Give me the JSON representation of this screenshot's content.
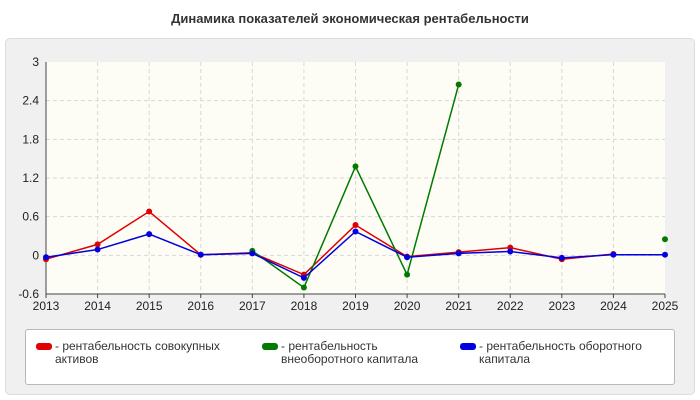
{
  "title": "Динамика показателей экономическая рентабельности",
  "chart_data": {
    "type": "line",
    "title": "Динамика показателей экономическая рентабельности",
    "x": [
      "2013",
      "2014",
      "2015",
      "2016",
      "2017",
      "2018",
      "2019",
      "2020",
      "2021",
      "2022",
      "2023",
      "2024",
      "2025"
    ],
    "ylim": [
      -0.6,
      3
    ],
    "yticks": [
      "-0.6",
      "0",
      "0.6",
      "1.2",
      "1.8",
      "2.4",
      "3"
    ],
    "grid": true,
    "legend_position": "bottom",
    "series": [
      {
        "name": "рентабельность совокупных активов",
        "color": "#e00000",
        "values": [
          -0.06,
          0.17,
          0.68,
          0.01,
          0.04,
          -0.3,
          0.47,
          -0.02,
          0.05,
          0.12,
          -0.06,
          0.02,
          null
        ]
      },
      {
        "name": "рентабельность внеоборотного капитала",
        "color": "#007a00",
        "values": [
          null,
          null,
          null,
          null,
          0.07,
          -0.5,
          1.38,
          -0.3,
          2.65,
          null,
          null,
          null,
          0.25
        ]
      },
      {
        "name": "рентабельность оборотного капитала",
        "color": "#0000e0",
        "values": [
          -0.03,
          0.09,
          0.33,
          0.01,
          0.03,
          -0.35,
          0.37,
          -0.03,
          0.03,
          0.06,
          -0.04,
          0.01,
          0.01
        ]
      }
    ]
  }
}
